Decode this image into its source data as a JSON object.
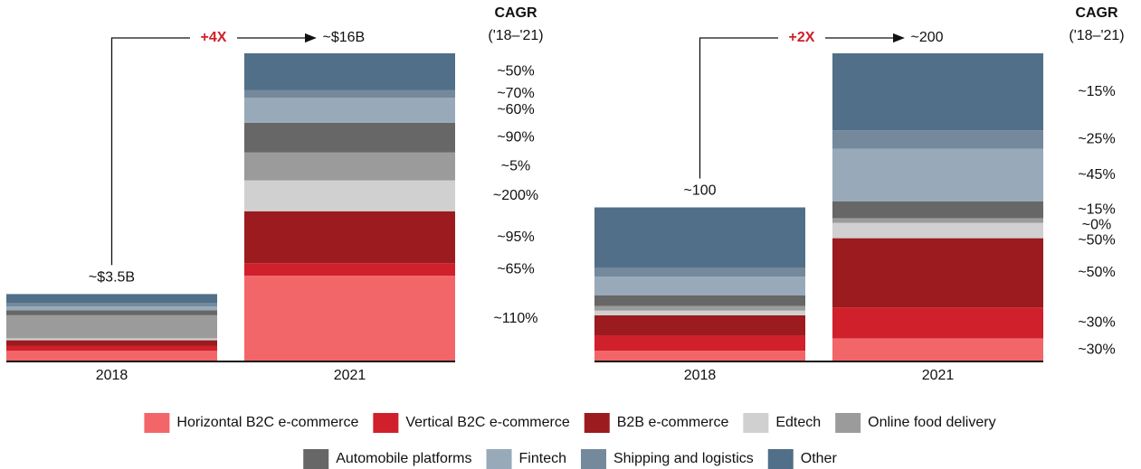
{
  "legend": [
    {
      "name": "Horizontal B2C e-commerce",
      "color": "#f26669"
    },
    {
      "name": "Vertical B2C e-commerce",
      "color": "#d0202b"
    },
    {
      "name": "B2B e-commerce",
      "color": "#9b1b1f"
    },
    {
      "name": "Edtech",
      "color": "#d0d0d0"
    },
    {
      "name": "Online food delivery",
      "color": "#9b9b9b"
    },
    {
      "name": "Automobile platforms",
      "color": "#676767"
    },
    {
      "name": "Fintech",
      "color": "#98aab9"
    },
    {
      "name": "Shipping and logistics",
      "color": "#74899c"
    },
    {
      "name": "Other",
      "color": "#516f88"
    }
  ],
  "chart_data": [
    {
      "type": "bar",
      "stacked": true,
      "categories": [
        "2018",
        "2021"
      ],
      "ylim": [
        0,
        16
      ],
      "series": [
        {
          "values": [
            0.55,
            4.45
          ]
        },
        {
          "values": [
            0.25,
            0.65
          ]
        },
        {
          "values": [
            0.3,
            2.7
          ]
        },
        {
          "values": [
            0.1,
            1.6
          ]
        },
        {
          "values": [
            1.2,
            1.45
          ]
        },
        {
          "values": [
            0.25,
            1.55
          ]
        },
        {
          "values": [
            0.2,
            1.3
          ]
        },
        {
          "values": [
            0.2,
            0.4
          ]
        },
        {
          "values": [
            0.45,
            1.9
          ]
        }
      ],
      "totals": [
        3.5,
        16
      ],
      "totals_labels": [
        "~$3.5B",
        "~$16B"
      ],
      "growth_label": "+4X",
      "cagr_title": "CAGR",
      "cagr_subtitle": "('18–'21)",
      "cagr_labels": [
        "~110%",
        "~65%",
        "~95%",
        "~200%",
        "~5%",
        "~90%",
        "~60%",
        "~70%",
        "~50%"
      ]
    },
    {
      "type": "bar",
      "stacked": true,
      "categories": [
        "2018",
        "2021"
      ],
      "ylim": [
        0,
        200
      ],
      "series": [
        {
          "values": [
            7,
            15
          ]
        },
        {
          "values": [
            10,
            20
          ]
        },
        {
          "values": [
            13,
            45
          ]
        },
        {
          "values": [
            3,
            10
          ]
        },
        {
          "values": [
            3,
            3
          ]
        },
        {
          "values": [
            7,
            11
          ]
        },
        {
          "values": [
            12,
            34
          ]
        },
        {
          "values": [
            6,
            12
          ]
        },
        {
          "values": [
            39,
            50
          ]
        }
      ],
      "totals": [
        100,
        200
      ],
      "totals_labels": [
        "~100",
        "~200"
      ],
      "growth_label": "+2X",
      "cagr_title": "CAGR",
      "cagr_subtitle": "('18–'21)",
      "cagr_labels": [
        "~30%",
        "~30%",
        "~50%",
        "~50%",
        "~0%",
        "~15%",
        "~45%",
        "~25%",
        "~15%"
      ]
    }
  ]
}
